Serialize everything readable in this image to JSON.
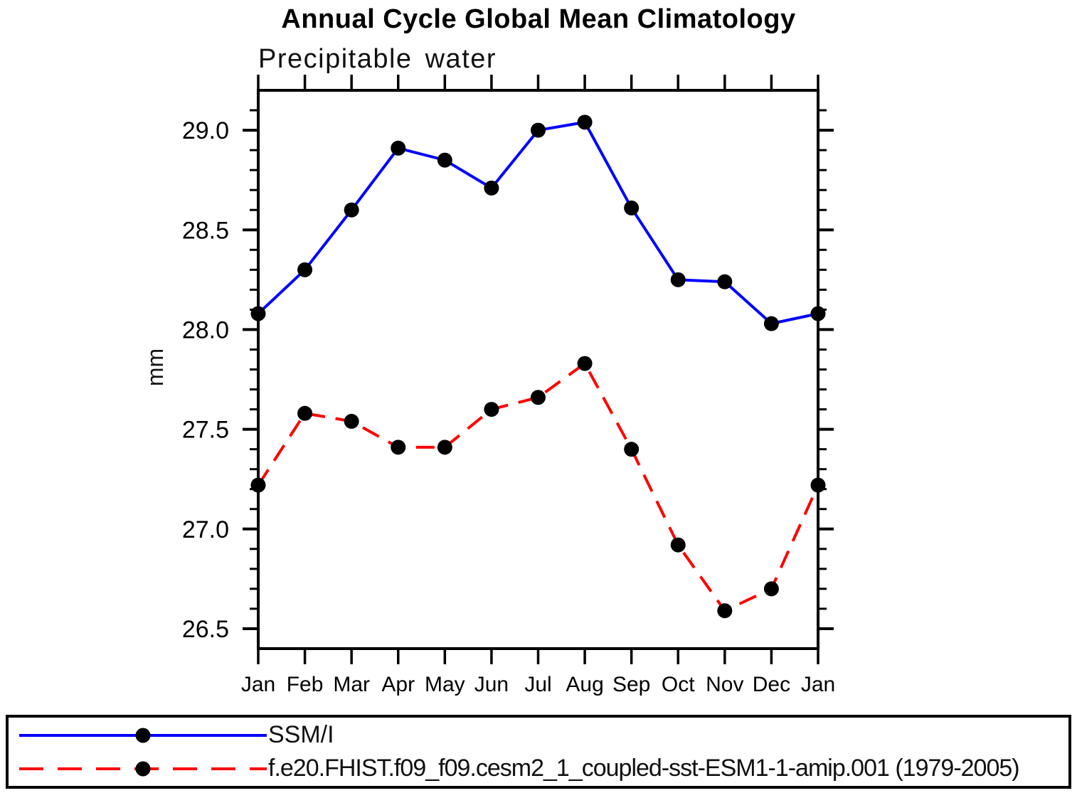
{
  "title": "Annual Cycle Global Mean Climatology",
  "chart_data": {
    "type": "line",
    "title": "Annual Cycle Global Mean Climatology",
    "subtitle": "Precipitable water",
    "ylabel": "mm",
    "xlabel": "",
    "categories": [
      "Jan",
      "Feb",
      "Mar",
      "Apr",
      "May",
      "Jun",
      "Jul",
      "Aug",
      "Sep",
      "Oct",
      "Nov",
      "Dec",
      "Jan"
    ],
    "ylim": [
      26.4,
      29.2
    ],
    "ytick_minor_step": 0.1,
    "ytick_major_step": 0.5,
    "ytick_labels": [
      "26.5",
      "27.0",
      "27.5",
      "28.0",
      "28.5",
      "29.0"
    ],
    "grid": false,
    "legend_position": "bottom",
    "marker": "filled-circle",
    "marker_color": "#000000",
    "series": [
      {
        "name": "SSM/I",
        "color": "#0000ff",
        "line_style": "solid",
        "values": [
          28.08,
          28.3,
          28.6,
          28.91,
          28.85,
          28.71,
          29.0,
          29.04,
          28.61,
          28.25,
          28.24,
          28.03,
          28.08
        ]
      },
      {
        "name": "f.e20.FHIST.f09_f09.cesm2_1_coupled-sst-ESM1-1-amip.001 (1979-2005)",
        "color": "#ff0000",
        "line_style": "dashed",
        "values": [
          27.22,
          27.58,
          27.54,
          27.41,
          27.41,
          27.6,
          27.66,
          27.83,
          27.4,
          26.92,
          26.59,
          26.7,
          27.22
        ]
      }
    ]
  }
}
